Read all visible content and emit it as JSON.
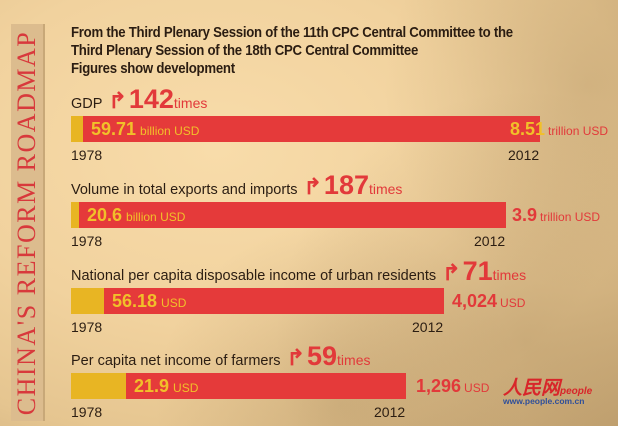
{
  "banner": "CHINA'S REFORM ROADMAP",
  "title": [
    "From the Third Plenary Session of the 11th CPC Central Committee to the",
    "Third Plenary Session of the 18th CPC Central Committee",
    "Figures show development"
  ],
  "logo": {
    "text": "人民网",
    "sub": "people",
    "url": "www.people.com.cn"
  },
  "colors": {
    "bar_end": "#e53a3a",
    "bar_start": "#e8b523",
    "accent": "#e2393a"
  },
  "chart_data": {
    "type": "bar",
    "title": "Figures show development",
    "categories": [
      "1978",
      "2012"
    ],
    "times_suffix": "times",
    "series": [
      {
        "name": "GDP",
        "growth": "142",
        "start": {
          "value": "59.71",
          "unit": "billion USD",
          "start_color": "#f1c02a"
        },
        "end": {
          "value": "8.51",
          "unit": "trillion USD",
          "color": "#f1c02a"
        }
      },
      {
        "name": "Volume in total exports and imports",
        "growth": "187",
        "start": {
          "value": "20.6",
          "unit": "billion USD"
        },
        "end": {
          "value": "3.9",
          "unit": "trillion USD",
          "color": "#e2393a"
        }
      },
      {
        "name": "National per capita disposable income of urban residents",
        "growth": "71",
        "start": {
          "value": "56.18",
          "unit": "USD"
        },
        "end": {
          "value": "4,024",
          "unit": "USD",
          "color": "#e2393a"
        }
      },
      {
        "name": "Per capita net income of farmers",
        "growth": "59",
        "start": {
          "value": "21.9",
          "unit": "USD"
        },
        "end": {
          "value": "1,296",
          "unit": "USD",
          "color": "#e2393a"
        }
      }
    ]
  }
}
